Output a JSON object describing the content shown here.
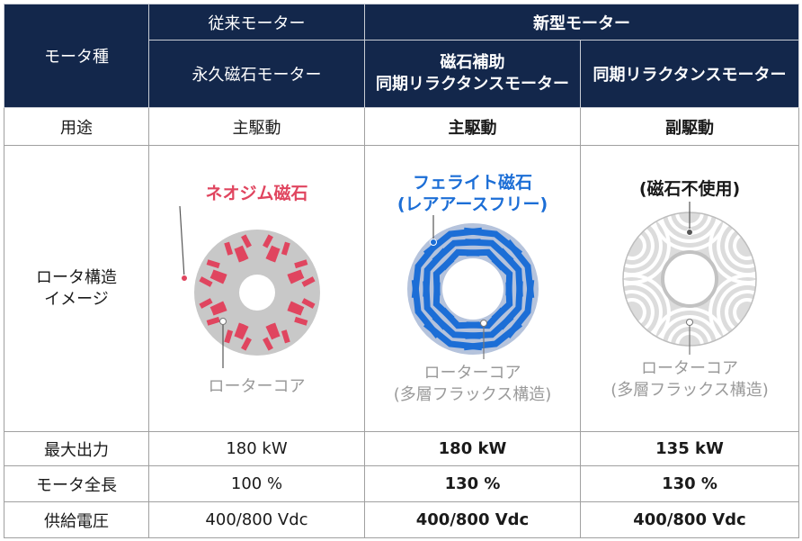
{
  "header": {
    "motor_type": "モータ種",
    "conventional": "従来モーター",
    "new_type": "新型モーター",
    "pm_motor": "永久磁石モーター",
    "assisted_line1": "磁石補助",
    "assisted_line2": "同期リラクタンスモーター",
    "reluctance": "同期リラクタンスモーター"
  },
  "rows": {
    "usage": {
      "label": "用途",
      "c1": "主駆動",
      "c2": "主駆動",
      "c3": "副駆動"
    },
    "rotor": {
      "label_line1": "ロータ構造",
      "label_line2": "イメージ",
      "c1_top": "ネオジム磁石",
      "c1_bottom": "ローターコア",
      "c2_top_line1": "フェライト磁石",
      "c2_top_line2": "(レアアースフリー)",
      "c2_bottom_line1": "ローターコア",
      "c2_bottom_line2": "(多層フラックス構造)",
      "c3_top": "(磁石不使用)",
      "c3_bottom_line1": "ローターコア",
      "c3_bottom_line2": "(多層フラックス構造)"
    },
    "max_output": {
      "label": "最大出力",
      "c1": "180 kW",
      "c2": "180 kW",
      "c3": "135 kW"
    },
    "length": {
      "label": "モータ全長",
      "c1": "100 %",
      "c2": "130 %",
      "c3": "130 %"
    },
    "voltage": {
      "label": "供給電圧",
      "c1": "400/800 Vdc",
      "c2": "400/800 Vdc",
      "c3": "400/800 Vdc"
    }
  },
  "colors": {
    "header_bg": "#13274b",
    "neodymium": "#e0455f",
    "ferrite": "#1c6ed6",
    "core_gray": "#c8c8c8"
  }
}
